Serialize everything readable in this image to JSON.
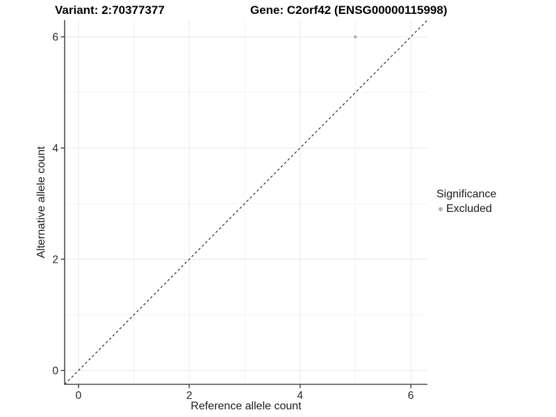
{
  "chart_data": {
    "type": "scatter",
    "title_left": "Variant: 2:70377377",
    "title_right": "Gene: C2orf42 (ENSG00000115998)",
    "xlabel": "Reference allele count",
    "ylabel": "Alternative allele count",
    "xlim": [
      -0.25,
      6.3
    ],
    "ylim": [
      -0.25,
      6.3
    ],
    "x_ticks": [
      0,
      2,
      4,
      6
    ],
    "y_ticks": [
      0,
      2,
      4,
      6
    ],
    "x_minor_ticks": [
      1,
      3,
      5
    ],
    "y_minor_ticks": [
      1,
      3,
      5
    ],
    "grid": true,
    "points": [
      {
        "x": 5,
        "y": 6,
        "series": "Excluded"
      }
    ],
    "identity_line": {
      "style": "dashed",
      "from": [
        -0.25,
        -0.25
      ],
      "to": [
        6.3,
        6.3
      ]
    },
    "legend": {
      "title": "Significance",
      "position": "right",
      "items": [
        {
          "label": "Excluded",
          "color": "#b1b1b1"
        }
      ]
    },
    "colors": {
      "point": "#b1b1b1",
      "grid_major": "#e7e7e7",
      "grid_minor": "#f1f1f1",
      "axis_line": "#4d4d4d",
      "tick_text": "#262626",
      "identity_line": "#111111",
      "background": "#ffffff"
    }
  }
}
